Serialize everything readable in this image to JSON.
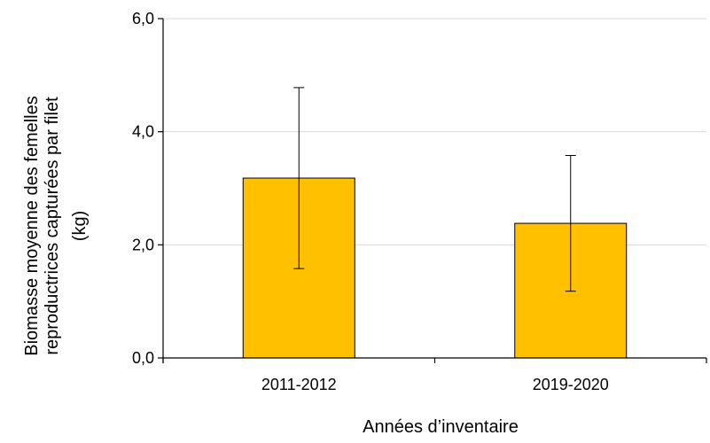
{
  "chart_data": {
    "type": "bar",
    "categories": [
      "2011-2012",
      "2019-2020"
    ],
    "values": [
      3.18,
      2.38
    ],
    "error_bars": [
      {
        "low": 1.58,
        "high": 4.78
      },
      {
        "low": 1.18,
        "high": 3.58
      }
    ],
    "xlabel": "Années d’inventaire",
    "ylabel_lines": [
      "Biomasse moyenne des femelles",
      "reproductrices capturées par filet",
      "(kg)"
    ],
    "ylim": [
      0,
      6
    ],
    "yticks": [
      0,
      2,
      4,
      6
    ],
    "ytick_labels": [
      "0,0",
      "2,0",
      "4,0",
      "6,0"
    ],
    "grid": true,
    "legend": "none",
    "colors": {
      "bar_fill": "#FFC000",
      "bar_stroke": "#000000",
      "grid": "#D9D9D9",
      "axis": "#000000"
    }
  }
}
